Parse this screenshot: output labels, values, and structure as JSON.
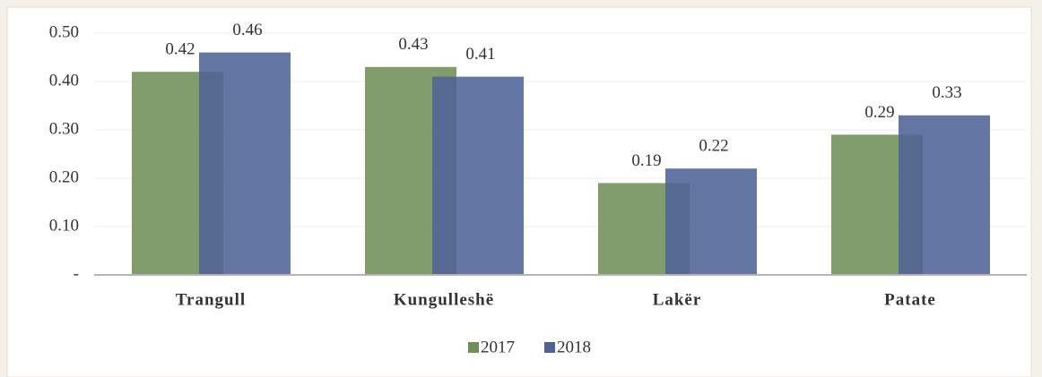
{
  "chart_data": {
    "type": "bar",
    "categories": [
      "Trangull",
      "Kungulleshë",
      "Lakër",
      "Patate"
    ],
    "series": [
      {
        "name": "2017",
        "color": "#6f8f58",
        "values": [
          0.42,
          0.43,
          0.19,
          0.29
        ]
      },
      {
        "name": "2018",
        "color": "#4e6396",
        "values": [
          0.46,
          0.41,
          0.22,
          0.33
        ]
      }
    ],
    "ylim": [
      0,
      0.5
    ],
    "yticks": [
      {
        "value": 0,
        "label": "-"
      },
      {
        "value": 0.1,
        "label": "0.10"
      },
      {
        "value": 0.2,
        "label": "0.20"
      },
      {
        "value": 0.3,
        "label": "0.30"
      },
      {
        "value": 0.4,
        "label": "0.40"
      },
      {
        "value": 0.5,
        "label": "0.50"
      }
    ],
    "grid": true,
    "legend": "bottom"
  }
}
